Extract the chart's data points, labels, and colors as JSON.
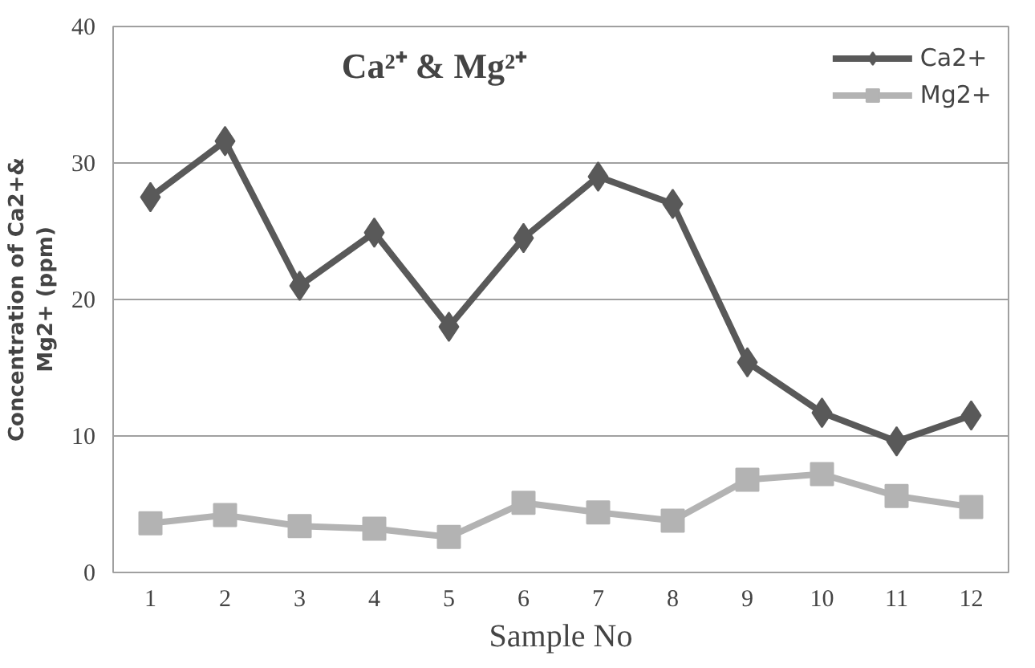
{
  "chart_data": {
    "type": "line",
    "title": "Ca²⁺ & Mg²⁺",
    "xlabel": "Sample No",
    "ylabel": "Concentration of Ca2+&\nMg2+ (ppm)",
    "x": [
      1,
      2,
      3,
      4,
      5,
      6,
      7,
      8,
      9,
      10,
      11,
      12
    ],
    "xlim": [
      0.5,
      12.5
    ],
    "xticks": [
      1,
      2,
      3,
      4,
      5,
      6,
      7,
      8,
      9,
      10,
      11,
      12
    ],
    "series": [
      {
        "name": "Ca2+",
        "color": "#595959",
        "marker": "diamond",
        "values": [
          27.5,
          31.6,
          21.0,
          24.9,
          18.0,
          24.5,
          29.0,
          27.0,
          15.4,
          11.7,
          9.6,
          11.5
        ]
      },
      {
        "name": "Mg2+",
        "color": "#b3b3b3",
        "marker": "square",
        "values": [
          3.6,
          4.2,
          3.4,
          3.2,
          2.6,
          5.1,
          4.4,
          3.8,
          6.8,
          7.2,
          5.6,
          4.8
        ]
      }
    ],
    "ylim": [
      0,
      40
    ],
    "yticks": [
      0,
      10,
      20,
      30,
      40
    ],
    "grid": "y",
    "legend": "top right",
    "line_style": "solid"
  }
}
